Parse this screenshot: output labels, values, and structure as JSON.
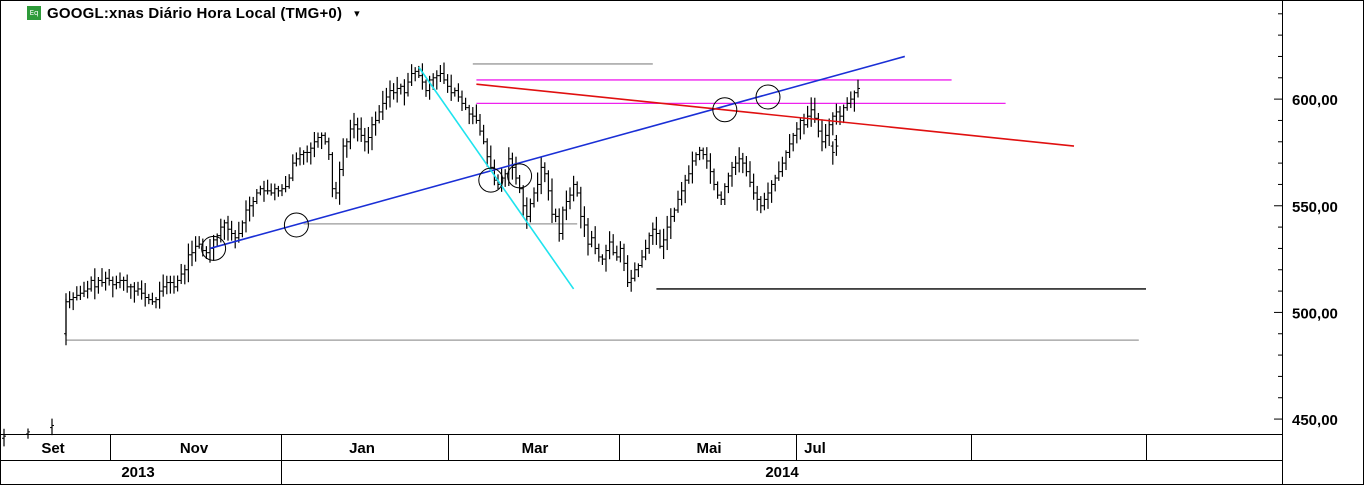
{
  "header": {
    "icon_label": "Eq",
    "title": "GOOGL:xnas Diário Hora Local (TMG+0)",
    "menu_caret": "▾"
  },
  "chart_data": {
    "type": "ohlc",
    "y_ticks": [
      "600,00",
      "550,00",
      "500,00",
      "450,00"
    ],
    "y_tick_values": [
      600,
      550,
      500,
      450
    ],
    "ylim": [
      443,
      646
    ],
    "month_labels": [
      {
        "label": "Set",
        "month": "2013-09"
      },
      {
        "label": "Nov",
        "month": "2013-11"
      },
      {
        "label": "Jan",
        "month": "2014-01"
      },
      {
        "label": "Mar",
        "month": "2014-03"
      },
      {
        "label": "Mai",
        "month": "2014-05"
      },
      {
        "label": "Jul",
        "month": "2014-07"
      }
    ],
    "year_labels": [
      "2013",
      "2014"
    ],
    "colors": {
      "bars": "#000000",
      "grid": "#d8d8d8",
      "blue_trendline": "#1a2fd6",
      "red_trendline": "#e01010",
      "cyan_trendline": "#1fe3ee",
      "magenta_levels": "#ee22ee",
      "gray_levels": "#9a9a9a",
      "support_level": "#000000"
    },
    "series": [
      {
        "segment": "pre",
        "closes": [
          442,
          443,
          444,
          444,
          445,
          446,
          447,
          448
        ]
      },
      {
        "segment": "main",
        "closes": [
          505,
          506,
          507,
          508,
          509,
          510,
          511,
          515,
          512,
          515,
          514,
          516,
          515,
          513,
          514,
          515,
          515,
          512,
          512,
          510,
          511,
          509,
          507,
          506,
          505,
          506,
          510,
          512,
          514,
          514,
          512,
          515,
          518,
          520,
          527,
          528,
          531,
          532,
          529,
          528,
          530,
          534,
          536,
          540,
          542,
          539,
          537,
          535,
          537,
          542,
          548,
          550,
          552,
          556,
          558,
          557,
          557,
          556,
          558,
          557,
          558,
          559,
          563,
          570,
          572,
          574,
          575,
          575,
          577,
          580,
          582,
          583,
          580,
          574,
          558,
          556,
          567,
          578,
          580,
          586,
          588,
          586,
          583,
          580,
          582,
          588,
          590,
          594,
          598,
          601,
          604,
          603,
          605,
          606,
          603,
          608,
          612,
          613,
          611,
          608,
          604,
          609,
          610,
          611,
          612,
          609,
          606,
          603,
          604,
          601,
          598,
          596,
          593,
          592,
          590,
          585,
          580,
          573,
          568,
          562,
          560,
          563,
          565,
          572,
          568,
          563,
          558,
          550,
          545,
          551,
          556,
          560,
          568,
          565,
          557,
          546,
          545,
          537,
          548,
          552,
          555,
          560,
          556,
          545,
          541,
          532,
          535,
          530,
          526,
          525,
          529,
          533,
          528,
          526,
          530,
          523,
          514,
          516,
          520,
          522,
          526,
          530,
          536,
          539,
          537,
          531,
          534,
          540,
          545,
          548,
          553,
          557,
          562,
          565,
          571,
          574,
          576,
          574,
          571,
          566,
          560,
          555,
          553,
          559,
          564,
          568,
          570,
          572,
          570,
          566,
          561,
          556,
          553,
          550,
          553,
          556,
          560,
          563,
          566,
          570,
          575,
          579,
          583,
          586,
          590,
          588,
          592,
          595,
          591,
          585,
          580,
          583,
          588,
          592,
          594,
          592,
          596,
          598,
          600,
          603,
          605
        ]
      },
      {
        "segment": "late",
        "closes": [
          575,
          578
        ]
      }
    ],
    "levels": [
      {
        "name": "gray-top-level",
        "price": 616.5,
        "from_bar": 113,
        "to_bar": 163,
        "color": "gray_levels"
      },
      {
        "name": "gray-mid-level",
        "price": 541.5,
        "from_bar": 66,
        "to_bar": 142,
        "color": "gray_levels"
      },
      {
        "name": "gray-low-level",
        "price": 487,
        "from_bar": 0,
        "to_bar": 298,
        "color": "gray_levels"
      },
      {
        "name": "support-level",
        "price": 511,
        "from_bar": 164,
        "to_bar": 300,
        "color": "support_level"
      },
      {
        "name": "magenta-upper-level",
        "price": 609,
        "from_bar": 114,
        "to_bar": 246,
        "color": "magenta_levels"
      },
      {
        "name": "magenta-lower-level",
        "price": 598,
        "from_bar": 114,
        "to_bar": 261,
        "color": "magenta_levels"
      }
    ],
    "trendlines": [
      {
        "name": "blue-trendline",
        "from": {
          "bar": 40,
          "price": 530
        },
        "to": {
          "bar": 233,
          "price": 620
        },
        "color": "blue_trendline"
      },
      {
        "name": "red-trendline",
        "from": {
          "bar": 114,
          "price": 607
        },
        "to": {
          "bar": 280,
          "price": 578
        },
        "color": "red_trendline"
      },
      {
        "name": "cyan-trendline",
        "from": {
          "bar": 98,
          "price": 615
        },
        "to": {
          "bar": 141,
          "price": 511
        },
        "color": "cyan_trendline"
      }
    ],
    "circle_markers": [
      {
        "bar": 41,
        "price": 530
      },
      {
        "bar": 64,
        "price": 541
      },
      {
        "bar": 118,
        "price": 562
      },
      {
        "bar": 126,
        "price": 564
      },
      {
        "bar": 183,
        "price": 595
      },
      {
        "bar": 195,
        "price": 601
      }
    ]
  }
}
